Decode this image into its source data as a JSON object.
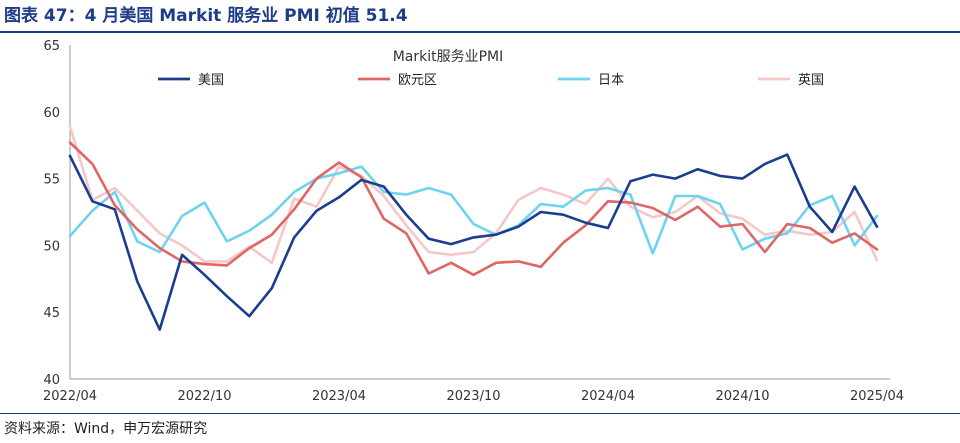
{
  "figure": {
    "title": "图表 47：4 月美国 Markit 服务业 PMI 初值 51.4",
    "source": "资料来源：Wind，申万宏源研究"
  },
  "chart_data": {
    "type": "line",
    "title": "Markit服务业PMI",
    "xlabel": "",
    "ylabel": "",
    "ylim": [
      40,
      65
    ],
    "yticks": [
      40,
      45,
      50,
      55,
      60,
      65
    ],
    "x": [
      "2022/04",
      "2022/05",
      "2022/06",
      "2022/07",
      "2022/08",
      "2022/09",
      "2022/10",
      "2022/11",
      "2022/12",
      "2023/01",
      "2023/02",
      "2023/03",
      "2023/04",
      "2023/05",
      "2023/06",
      "2023/07",
      "2023/08",
      "2023/09",
      "2023/10",
      "2023/11",
      "2023/12",
      "2024/01",
      "2024/02",
      "2024/03",
      "2024/04",
      "2024/05",
      "2024/06",
      "2024/07",
      "2024/08",
      "2024/09",
      "2024/10",
      "2024/11",
      "2024/12",
      "2025/01",
      "2025/02",
      "2025/03",
      "2025/04"
    ],
    "xtick_labels": [
      "2022/04",
      "2022/10",
      "2023/04",
      "2023/10",
      "2024/04",
      "2024/10",
      "2025/04"
    ],
    "legend_position": "top",
    "grid": false,
    "series": [
      {
        "name": "美国",
        "color": "#1c3d8f",
        "values": [
          56.7,
          53.3,
          52.7,
          47.3,
          43.7,
          49.3,
          47.8,
          46.2,
          44.7,
          46.8,
          50.6,
          52.6,
          53.6,
          54.9,
          54.4,
          52.3,
          50.5,
          50.1,
          50.6,
          50.8,
          51.4,
          52.5,
          52.3,
          51.7,
          51.3,
          54.8,
          55.3,
          55.0,
          55.7,
          55.2,
          55.0,
          56.1,
          56.8,
          52.9,
          51.0,
          54.4,
          51.4
        ]
      },
      {
        "name": "欧元区",
        "color": "#e06666",
        "values": [
          57.7,
          56.1,
          53.0,
          51.2,
          49.8,
          48.8,
          48.6,
          48.5,
          49.8,
          50.8,
          52.7,
          55.0,
          56.2,
          55.1,
          52.0,
          50.9,
          47.9,
          48.7,
          47.8,
          48.7,
          48.8,
          48.4,
          50.2,
          51.5,
          53.3,
          53.2,
          52.8,
          51.9,
          52.9,
          51.4,
          51.6,
          49.5,
          51.6,
          51.3,
          50.2,
          50.9,
          49.7
        ]
      },
      {
        "name": "日本",
        "color": "#6fd3f0",
        "values": [
          50.7,
          52.6,
          54.0,
          50.3,
          49.5,
          52.2,
          53.2,
          50.3,
          51.1,
          52.3,
          54.0,
          55.0,
          55.4,
          55.9,
          54.0,
          53.8,
          54.3,
          53.8,
          51.6,
          50.8,
          51.5,
          53.1,
          52.9,
          54.1,
          54.3,
          53.8,
          49.4,
          53.7,
          53.7,
          53.1,
          49.7,
          50.5,
          50.9,
          53.0,
          53.7,
          50.0,
          52.2
        ]
      },
      {
        "name": "英国",
        "color": "#f5c7c7",
        "values": [
          58.9,
          53.4,
          54.3,
          52.6,
          50.9,
          50.0,
          48.8,
          48.8,
          49.9,
          48.7,
          53.5,
          52.9,
          55.9,
          55.2,
          53.7,
          51.5,
          49.5,
          49.3,
          49.5,
          50.9,
          53.4,
          54.3,
          53.8,
          53.1,
          55.0,
          52.9,
          52.1,
          52.5,
          53.7,
          52.4,
          52.0,
          50.8,
          51.1,
          50.8,
          51.0,
          52.5,
          48.9
        ]
      }
    ]
  }
}
